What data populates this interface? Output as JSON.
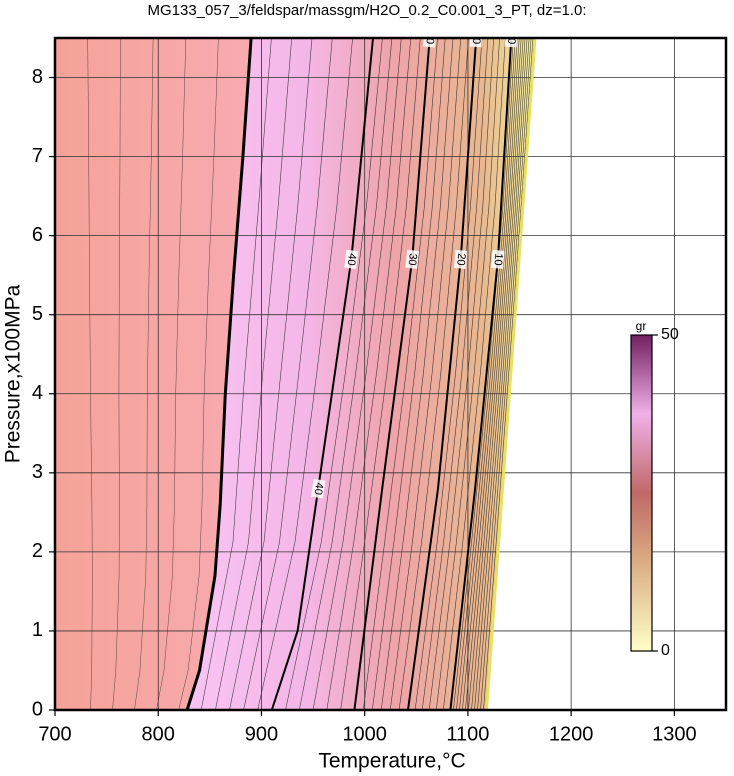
{
  "chart_data": {
    "type": "contour",
    "title": "MG133_057_3/feldspar/massgm/H2O_0.2_C0.001_3_PT, dz=1.0:",
    "x_label": "Temperature,°C",
    "y_label": "Pressure,x100MPa",
    "xlim": [
      700,
      1350
    ],
    "ylim": [
      0,
      8.5
    ],
    "xticks": [
      700,
      800,
      900,
      1000,
      1100,
      1200,
      1300
    ],
    "yticks": [
      0,
      1,
      2,
      3,
      4,
      5,
      6,
      7,
      8
    ],
    "grid": true,
    "boundary": {
      "x": [
        828,
        840,
        855,
        860,
        865,
        873,
        882,
        890
      ],
      "y": [
        0,
        0.5,
        1.7,
        2.6,
        4,
        5.5,
        7,
        8.5
      ]
    },
    "edge": {
      "x": [
        1118,
        1165
      ],
      "y": [
        0,
        8.5
      ]
    },
    "contours": [
      {
        "level": 40,
        "x": [
          910,
          935,
          955,
          987,
          1008
        ],
        "y": [
          0,
          1,
          2.8,
          5.7,
          8.5
        ]
      },
      {
        "level": 30,
        "x": [
          990,
          1017,
          1046,
          1063
        ],
        "y": [
          0,
          2.8,
          5.7,
          8.5
        ]
      },
      {
        "level": 20,
        "x": [
          1042,
          1071,
          1093,
          1108
        ],
        "y": [
          0,
          2.8,
          5.7,
          8.5
        ]
      },
      {
        "level": 10,
        "x": [
          1083,
          1107,
          1129,
          1142
        ],
        "y": [
          0,
          2.8,
          5.7,
          8.5
        ]
      }
    ],
    "colorbar": {
      "label": "gr",
      "range": [
        0,
        50
      ],
      "ticks": [
        0,
        50
      ]
    }
  }
}
